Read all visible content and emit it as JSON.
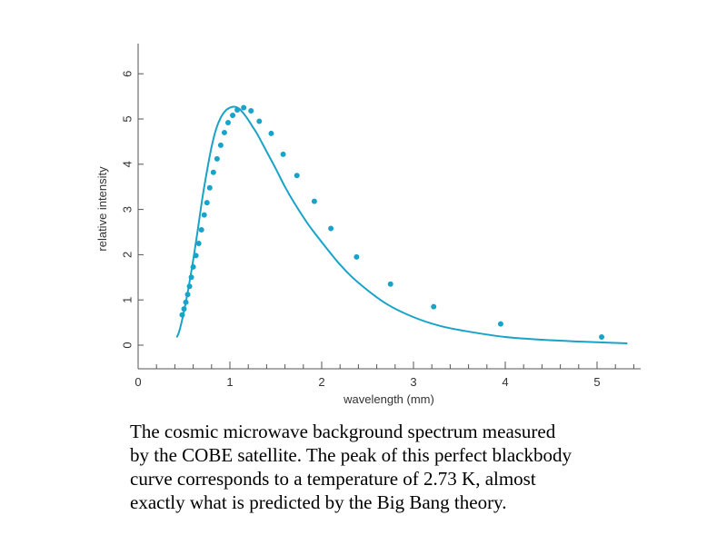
{
  "chart_data": {
    "type": "line",
    "title": "",
    "xlabel": "wavelength (mm)",
    "ylabel": "relative intensity",
    "xlim": [
      0,
      5.5
    ],
    "ylim": [
      -0.5,
      6.6
    ],
    "x_ticks": [
      "0",
      "1",
      "2",
      "3",
      "4",
      "5"
    ],
    "y_ticks": [
      "0",
      "1",
      "2",
      "3",
      "4",
      "5",
      "6"
    ],
    "grid": false,
    "legend": "none",
    "line_color": "#1aa3c8",
    "series": [
      {
        "kind": "curve",
        "x": [
          0.42,
          0.45,
          0.5,
          0.55,
          0.6,
          0.65,
          0.7,
          0.75,
          0.8,
          0.85,
          0.9,
          0.95,
          1.0,
          1.05,
          1.1,
          1.15,
          1.2,
          1.25,
          1.3,
          1.4,
          1.5,
          1.6,
          1.7,
          1.85,
          2.0,
          2.2,
          2.4,
          2.7,
          3.0,
          3.3,
          3.6,
          4.0,
          4.4,
          4.8,
          5.33
        ],
        "y": [
          0.17,
          0.32,
          0.75,
          1.28,
          1.88,
          2.55,
          3.25,
          3.85,
          4.38,
          4.78,
          5.03,
          5.18,
          5.25,
          5.27,
          5.23,
          5.12,
          4.98,
          4.82,
          4.66,
          4.28,
          3.9,
          3.5,
          3.15,
          2.68,
          2.28,
          1.78,
          1.38,
          0.92,
          0.62,
          0.42,
          0.3,
          0.18,
          0.12,
          0.08,
          0.04
        ]
      },
      {
        "kind": "points",
        "x": [
          0.48,
          0.5,
          0.52,
          0.54,
          0.56,
          0.58,
          0.6,
          0.63,
          0.66,
          0.69,
          0.72,
          0.75,
          0.78,
          0.82,
          0.86,
          0.9,
          0.94,
          0.98,
          1.03,
          1.08,
          1.15,
          1.23,
          1.32,
          1.45,
          1.58,
          1.73,
          1.92,
          2.1,
          2.38,
          2.75,
          3.22,
          3.95,
          5.05
        ],
        "y": [
          0.67,
          0.8,
          0.95,
          1.12,
          1.3,
          1.5,
          1.73,
          1.98,
          2.25,
          2.55,
          2.88,
          3.15,
          3.48,
          3.82,
          4.12,
          4.42,
          4.7,
          4.92,
          5.08,
          5.2,
          5.25,
          5.18,
          4.95,
          4.68,
          4.22,
          3.75,
          3.18,
          2.58,
          1.95,
          1.35,
          0.85,
          0.47,
          0.18
        ]
      }
    ]
  },
  "caption": {
    "lines": [
      "The cosmic microwave background spectrum measured",
      "by the COBE satellite.  The peak of this perfect blackbody",
      "curve corresponds to a temperature of 2.73 K, almost",
      "exactly what is predicted by the Big Bang theory."
    ]
  }
}
